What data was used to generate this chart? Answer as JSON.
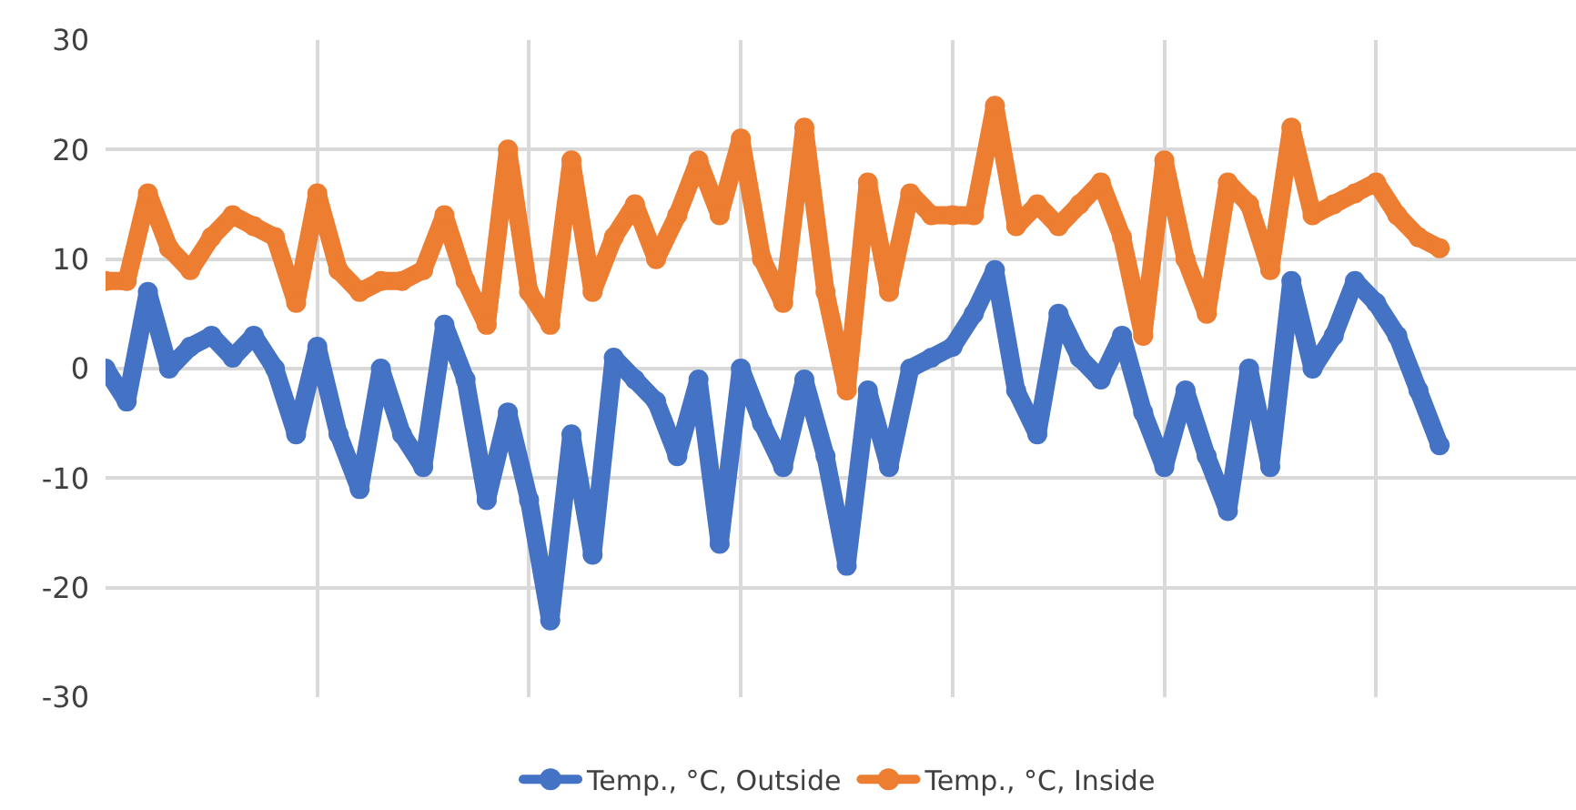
{
  "chart_data": {
    "type": "line",
    "marker": "circle",
    "line_style": "solid",
    "grid": true,
    "legend": "bottom",
    "tick_labels": "y",
    "categories": [
      null,
      null,
      null,
      null,
      null,
      null,
      null,
      null,
      null,
      null,
      null,
      null,
      null,
      null,
      null,
      null,
      null,
      null,
      null,
      null,
      null,
      null,
      null,
      null,
      null,
      null,
      null,
      null,
      null,
      null,
      null,
      null,
      null,
      null,
      null,
      null,
      null,
      null,
      null,
      null,
      null,
      null,
      null,
      null,
      null,
      null,
      null,
      null,
      null,
      null,
      null,
      null,
      null,
      null,
      null,
      null,
      null,
      null,
      null,
      null,
      null,
      null,
      null,
      null
    ],
    "ylim": [
      -30,
      30
    ],
    "yticks": [
      -30,
      -20,
      -10,
      0,
      10,
      20,
      30
    ],
    "series": [
      {
        "name": "Temp., °C, Outside",
        "color": "#4472c4",
        "values": [
          0,
          -3,
          7,
          0,
          2,
          3,
          1,
          3,
          0,
          -6,
          2,
          -6,
          -11,
          0,
          -6,
          -9,
          4,
          -1,
          -12,
          -4,
          -12,
          -23,
          -6,
          -17,
          1,
          -1,
          -3,
          -8,
          -1,
          -16,
          0,
          -5,
          -9,
          -1,
          -8,
          -18,
          -2,
          -9,
          0,
          1,
          2,
          5,
          9,
          -2,
          -6,
          5,
          1,
          -1,
          3,
          -4,
          -9,
          -2,
          -8,
          -13,
          0,
          -9,
          8,
          0,
          3,
          8,
          6,
          3,
          -2,
          -7
        ]
      },
      {
        "name": "Temp., °C, Inside",
        "color": "#ed7d31",
        "values": [
          8,
          8,
          16,
          11,
          9,
          12,
          14,
          13,
          12,
          6,
          16,
          9,
          7,
          8,
          8,
          9,
          14,
          8,
          4,
          20,
          7,
          4,
          19,
          7,
          12,
          15,
          10,
          14,
          19,
          14,
          21,
          10,
          6,
          22,
          7,
          -2,
          17,
          7,
          16,
          14,
          14,
          14,
          24,
          13,
          15,
          13,
          15,
          17,
          12,
          3,
          19,
          10,
          5,
          17,
          15,
          9,
          22,
          14,
          15,
          16,
          17,
          14,
          12,
          11
        ]
      }
    ]
  }
}
